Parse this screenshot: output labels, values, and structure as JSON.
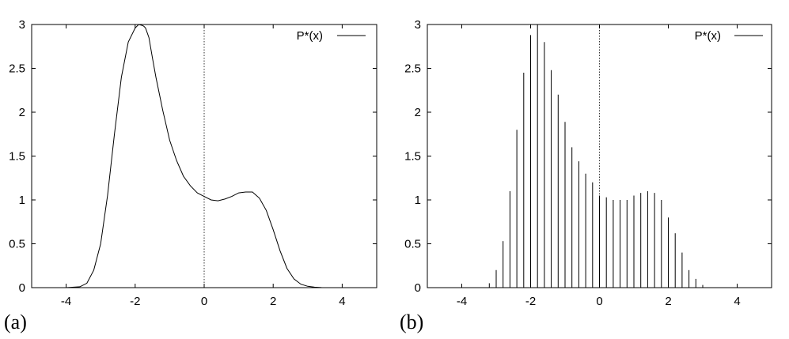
{
  "chart_data": [
    {
      "type": "line",
      "panel_label": "(a)",
      "legend": "P*(x)",
      "xlim": [
        -5,
        5
      ],
      "ylim": [
        0,
        3
      ],
      "xticks": [
        -4,
        -2,
        0,
        2,
        4
      ],
      "yticks": [
        0,
        0.5,
        1,
        1.5,
        2,
        2.5,
        3
      ],
      "xtick_labels": [
        "-4",
        "-2",
        "0",
        "2",
        "4"
      ],
      "ytick_labels": [
        "0",
        "0.5",
        "1",
        "1.5",
        "2",
        "2.5",
        "3"
      ],
      "reference_line_x": 0,
      "series": [
        {
          "x": [
            -5,
            -4,
            -3.6,
            -3.4,
            -3.2,
            -3.0,
            -2.8,
            -2.6,
            -2.4,
            -2.2,
            -2.0,
            -1.9,
            -1.8,
            -1.75,
            -1.7,
            -1.6,
            -1.5,
            -1.4,
            -1.2,
            -1.0,
            -0.8,
            -0.6,
            -0.4,
            -0.2,
            0,
            0.2,
            0.4,
            0.6,
            0.8,
            1.0,
            1.2,
            1.4,
            1.6,
            1.8,
            2.0,
            2.2,
            2.4,
            2.6,
            2.8,
            3.0,
            3.2,
            3.4,
            4,
            5
          ],
          "y": [
            0,
            0,
            0.01,
            0.05,
            0.2,
            0.5,
            1.05,
            1.75,
            2.4,
            2.8,
            2.96,
            3.0,
            2.99,
            2.98,
            2.96,
            2.85,
            2.62,
            2.4,
            2.02,
            1.68,
            1.45,
            1.27,
            1.16,
            1.08,
            1.04,
            1.0,
            0.99,
            1.01,
            1.04,
            1.08,
            1.09,
            1.09,
            1.02,
            0.88,
            0.66,
            0.42,
            0.22,
            0.1,
            0.04,
            0.015,
            0.005,
            0.001,
            0,
            0
          ]
        }
      ]
    },
    {
      "type": "bar",
      "panel_label": "(b)",
      "legend": "P*(x)",
      "xlim": [
        -5,
        5
      ],
      "ylim": [
        0,
        3
      ],
      "xticks": [
        -4,
        -2,
        0,
        2,
        4
      ],
      "yticks": [
        0,
        0.5,
        1,
        1.5,
        2,
        2.5,
        3
      ],
      "xtick_labels": [
        "-4",
        "-2",
        "0",
        "2",
        "4"
      ],
      "ytick_labels": [
        "0",
        "0.5",
        "1",
        "1.5",
        "2",
        "2.5",
        "3"
      ],
      "reference_line_x": 0,
      "series": [
        {
          "x": [
            -3.2,
            -3.0,
            -2.8,
            -2.6,
            -2.4,
            -2.2,
            -2.0,
            -1.8,
            -1.6,
            -1.4,
            -1.2,
            -1.0,
            -0.8,
            -0.6,
            -0.4,
            -0.2,
            0.0,
            0.2,
            0.4,
            0.6,
            0.8,
            1.0,
            1.2,
            1.4,
            1.6,
            1.8,
            2.0,
            2.2,
            2.4,
            2.6,
            2.8,
            3.0
          ],
          "y": [
            0.05,
            0.2,
            0.53,
            1.1,
            1.8,
            2.45,
            2.88,
            3.0,
            2.8,
            2.48,
            2.2,
            1.89,
            1.6,
            1.44,
            1.3,
            1.2,
            1.05,
            1.03,
            1.0,
            1.0,
            1.0,
            1.05,
            1.08,
            1.1,
            1.08,
            1.0,
            0.8,
            0.62,
            0.4,
            0.2,
            0.1,
            0.03
          ]
        }
      ]
    }
  ]
}
